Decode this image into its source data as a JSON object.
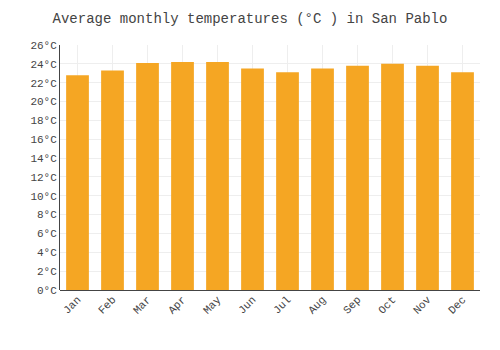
{
  "chart_data": {
    "type": "bar",
    "title": "Average monthly temperatures (°C ) in San Pablo",
    "categories": [
      "Jan",
      "Feb",
      "Mar",
      "Apr",
      "May",
      "Jun",
      "Jul",
      "Aug",
      "Sep",
      "Oct",
      "Nov",
      "Dec"
    ],
    "values": [
      22.8,
      23.3,
      24.1,
      24.2,
      24.2,
      23.5,
      23.1,
      23.5,
      23.8,
      24.0,
      23.8,
      23.1
    ],
    "color": "#F5A623",
    "ylim": [
      0,
      26
    ],
    "yticks": [
      {
        "value": 0,
        "label": "0°C"
      },
      {
        "value": 2,
        "label": "2°C"
      },
      {
        "value": 4,
        "label": "4°C"
      },
      {
        "value": 6,
        "label": "6°C"
      },
      {
        "value": 8,
        "label": "8°C"
      },
      {
        "value": 10,
        "label": "10°C"
      },
      {
        "value": 12,
        "label": "12°C"
      },
      {
        "value": 14,
        "label": "14°C"
      },
      {
        "value": 16,
        "label": "16°C"
      },
      {
        "value": 18,
        "label": "18°C"
      },
      {
        "value": 20,
        "label": "20°C"
      },
      {
        "value": 22,
        "label": "22°C"
      },
      {
        "value": 24,
        "label": "24°C"
      },
      {
        "value": 26,
        "label": "26°C"
      }
    ],
    "grid": true
  }
}
